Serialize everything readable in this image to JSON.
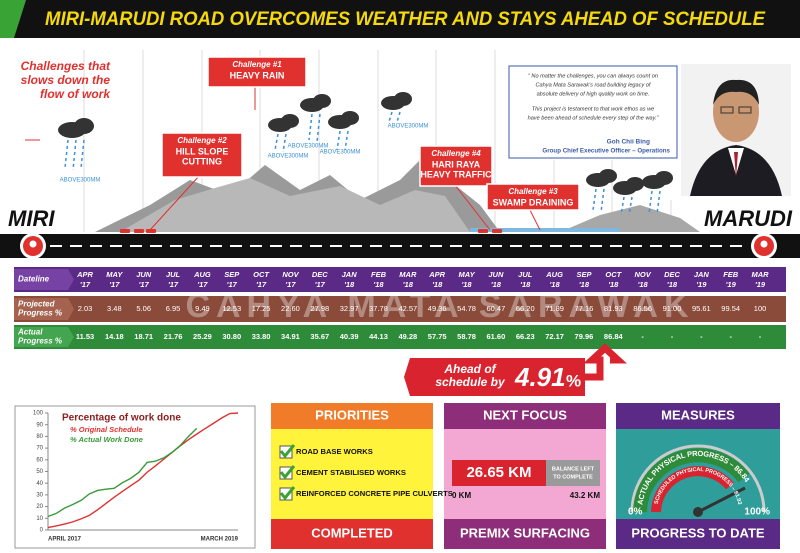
{
  "title": "MIRI-MARUDI ROAD OVERCOMES WEATHER AND STAYS AHEAD OF SCHEDULE",
  "challenges_heading": [
    "Challenges that",
    "slows down the",
    "flow of work"
  ],
  "challenges": [
    {
      "label": "Challenge #1",
      "lines": [
        "HEAVY RAIN"
      ]
    },
    {
      "label": "Challenge #2",
      "lines": [
        "HILL SLOPE",
        "CUTTING"
      ]
    },
    {
      "label": "Challenge #4",
      "lines": [
        "HARI RAYA",
        "HEAVY TRAFFIC"
      ]
    },
    {
      "label": "Challenge #3",
      "lines": [
        "SWAMP DRAINING"
      ]
    }
  ],
  "rain_labels": [
    "ABOVE300MM",
    "ABOVE300MM",
    "ABOVE300MM",
    "ABOVE300MM",
    "ABOVE300MM"
  ],
  "quote": {
    "paragraphs": [
      [
        "“ No matter the challenges, you can always count on",
        "Cahya Mata Sarawak’s road building legacy of",
        "absolute delivery of high quality work on time."
      ],
      [
        "This project is testament to that work ethos as we",
        "have been ahead of schedule every step of the way.”"
      ]
    ],
    "name": "Goh Chii Bing",
    "role": "Group Chief Executive Officer – Operations"
  },
  "start": "MIRI",
  "end": "MARUDI",
  "watermark": "CAHYA MATA SARAWAK",
  "timeline": {
    "row_labels": [
      [
        "Dateline"
      ],
      [
        "Projected",
        "Progress %"
      ],
      [
        "Actual",
        "Progress %"
      ]
    ],
    "months": [
      "APR",
      "MAY",
      "JUN",
      "JUL",
      "AUG",
      "SEP",
      "OCT",
      "NOV",
      "DEC",
      "JAN",
      "FEB",
      "MAR",
      "APR",
      "MAY",
      "JUN",
      "JUL",
      "AUG",
      "SEP",
      "OCT",
      "NOV",
      "DEC",
      "JAN",
      "FEB",
      "MAR"
    ],
    "years": [
      "'17",
      "'17",
      "'17",
      "'17",
      "'17",
      "'17",
      "'17",
      "'17",
      "'17",
      "'18",
      "'18",
      "'18",
      "'18",
      "'18",
      "'18",
      "'18",
      "'18",
      "'18",
      "'18",
      "'18",
      "'18",
      "'19",
      "'19",
      "'19"
    ],
    "projected": [
      "2.03",
      "3.48",
      "5.06",
      "6.95",
      "9.49",
      "12.53",
      "17.25",
      "22.60",
      "27.98",
      "32.97",
      "37.78",
      "42.57",
      "49.36",
      "54.78",
      "60.47",
      "66.20",
      "71.89",
      "77.16",
      "81.93",
      "86.56",
      "91.00",
      "95.61",
      "99.54",
      "100"
    ],
    "actual": [
      "11.53",
      "14.18",
      "18.71",
      "21.76",
      "25.29",
      "30.80",
      "33.80",
      "34.91",
      "35.67",
      "40.39",
      "44.13",
      "49.28",
      "57.75",
      "58.78",
      "61.60",
      "66.23",
      "72.17",
      "79.96",
      "86.84",
      "-",
      "-",
      "-",
      "-",
      "-"
    ]
  },
  "ahead": {
    "lines": [
      "Ahead of",
      "schedule by"
    ],
    "value": "4.91",
    "unit": "%"
  },
  "priorities": {
    "title": "PRIORITIES",
    "items": [
      "ROAD BASE WORKS",
      "CEMENT STABILISED WORKS",
      "REINFORCED CONCRETE PIPE CULVERTS"
    ],
    "footer": "COMPLETED"
  },
  "next_focus": {
    "title": "NEXT FOCUS",
    "value": "26.65 KM",
    "note": [
      "BALANCE LEFT",
      "TO COMPLETE"
    ],
    "min": "0 KM",
    "max": "43.2 KM",
    "footer": "PREMIX SURFACING"
  },
  "measures": {
    "title": "MEASURES",
    "actual": "ACTUAL PHYSICAL PROGRESS – 86.84",
    "scheduled": "SCHEDULED PHYSICAL PROGRESS – 81.93",
    "min": "0%",
    "max": "100%",
    "footer": "PROGRESS TO DATE"
  },
  "chart_data": {
    "type": "line",
    "title": "Percentage of work done",
    "categories": [
      "APRIL 2017",
      null,
      null,
      null,
      null,
      null,
      null,
      null,
      null,
      null,
      null,
      null,
      null,
      null,
      null,
      null,
      null,
      null,
      null,
      null,
      null,
      null,
      null,
      "MARCH 2019"
    ],
    "series": [
      {
        "name": "% Original Schedule",
        "color": "#e0312f",
        "values": [
          2.03,
          3.48,
          5.06,
          6.95,
          9.49,
          12.53,
          17.25,
          22.6,
          27.98,
          32.97,
          37.78,
          42.57,
          49.36,
          54.78,
          60.47,
          66.2,
          71.89,
          77.16,
          81.93,
          86.56,
          91,
          95.61,
          99.54,
          100
        ]
      },
      {
        "name": "% Actual Work Done",
        "color": "#3a9a3a",
        "values": [
          11.53,
          14.18,
          18.71,
          21.76,
          25.29,
          30.8,
          33.8,
          34.91,
          35.67,
          40.39,
          44.13,
          49.28,
          57.75,
          58.78,
          61.6,
          66.23,
          72.17,
          79.96,
          86.84,
          null,
          null,
          null,
          null,
          null
        ]
      }
    ],
    "ylim": [
      0,
      100
    ],
    "yticks": [
      0,
      10,
      20,
      30,
      40,
      50,
      60,
      70,
      80,
      90,
      100
    ]
  }
}
